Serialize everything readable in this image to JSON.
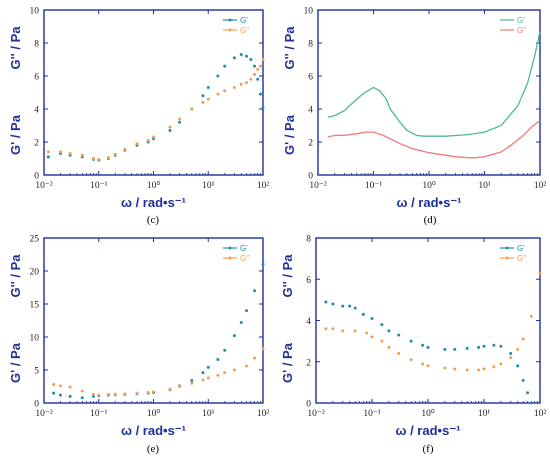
{
  "chart_data": [
    {
      "panel": "(c)",
      "type": "scatter",
      "xlabel": "ω / rad•s⁻¹",
      "ylabel_g1": "G' / Pa",
      "ylabel_g2": "G'' / Pa",
      "xscale": "log",
      "xlim": [
        0.01,
        100
      ],
      "ylim": [
        0,
        10
      ],
      "yticks": [
        0,
        2,
        4,
        6,
        8,
        10
      ],
      "xticks": [
        "10⁻²",
        "10⁻¹",
        "10⁰",
        "10¹",
        "10²"
      ],
      "legend_position": "top-right",
      "series": [
        {
          "name": "G'",
          "color": "#1f8fa3",
          "style": "dots",
          "x": [
            0.012,
            0.02,
            0.03,
            0.05,
            0.08,
            0.1,
            0.15,
            0.2,
            0.3,
            0.5,
            0.8,
            1,
            2,
            3,
            5,
            8,
            10,
            15,
            20,
            30,
            40,
            50,
            60,
            70,
            80,
            90,
            100
          ],
          "y": [
            1.1,
            1.3,
            1.2,
            1.1,
            0.95,
            0.9,
            1.0,
            1.2,
            1.5,
            1.8,
            2.0,
            2.2,
            2.7,
            3.2,
            4.0,
            4.8,
            5.3,
            6.0,
            6.6,
            7.1,
            7.3,
            7.2,
            7.0,
            6.6,
            5.8,
            4.9,
            4.1
          ]
        },
        {
          "name": "G''",
          "color": "#f0a050",
          "style": "dots",
          "x": [
            0.012,
            0.02,
            0.03,
            0.05,
            0.08,
            0.1,
            0.15,
            0.2,
            0.3,
            0.5,
            0.8,
            1,
            2,
            3,
            5,
            8,
            10,
            15,
            20,
            30,
            40,
            50,
            60,
            70,
            80,
            90,
            100
          ],
          "y": [
            1.4,
            1.4,
            1.3,
            1.2,
            1.0,
            0.95,
            1.05,
            1.25,
            1.55,
            1.9,
            2.1,
            2.3,
            2.9,
            3.4,
            4.0,
            4.4,
            4.6,
            4.9,
            5.1,
            5.3,
            5.5,
            5.6,
            5.8,
            6.1,
            6.4,
            6.6,
            7.0
          ]
        }
      ]
    },
    {
      "panel": "(d)",
      "type": "line",
      "xlabel": "ω / rad•s⁻¹",
      "ylabel_g1": "G' / Pa",
      "ylabel_g2": "G'' / Pa",
      "xscale": "log",
      "xlim": [
        0.01,
        100
      ],
      "ylim": [
        0,
        10
      ],
      "yticks": [
        0,
        2,
        4,
        6,
        8,
        10
      ],
      "xticks": [
        "10⁻²",
        "10⁻¹",
        "10⁰",
        "10¹",
        "10²"
      ],
      "legend_position": "top-right",
      "series": [
        {
          "name": "G'",
          "color": "#4cb89a",
          "style": "line",
          "x": [
            0.015,
            0.02,
            0.03,
            0.04,
            0.05,
            0.07,
            0.1,
            0.13,
            0.17,
            0.2,
            0.3,
            0.4,
            0.6,
            0.8,
            1,
            2,
            5,
            10,
            20,
            40,
            60,
            80,
            100
          ],
          "y": [
            3.5,
            3.6,
            3.9,
            4.3,
            4.6,
            5.0,
            5.3,
            5.1,
            4.6,
            4.0,
            3.2,
            2.7,
            2.4,
            2.35,
            2.35,
            2.35,
            2.45,
            2.6,
            3.0,
            4.2,
            5.6,
            7.2,
            8.7
          ]
        },
        {
          "name": "G''",
          "color": "#f07a7a",
          "style": "line",
          "x": [
            0.015,
            0.02,
            0.03,
            0.05,
            0.07,
            0.1,
            0.15,
            0.2,
            0.3,
            0.5,
            1,
            2,
            3,
            5,
            7,
            10,
            20,
            30,
            50,
            70,
            100
          ],
          "y": [
            2.3,
            2.4,
            2.4,
            2.5,
            2.6,
            2.6,
            2.4,
            2.2,
            1.9,
            1.6,
            1.35,
            1.2,
            1.1,
            1.05,
            1.05,
            1.1,
            1.4,
            1.8,
            2.4,
            2.9,
            3.3
          ]
        }
      ]
    },
    {
      "panel": "(e)",
      "type": "scatter",
      "xlabel": "ω / rad•s⁻¹",
      "ylabel_g1": "G' / Pa",
      "ylabel_g2": "G'' / Pa",
      "xscale": "log",
      "xlim": [
        0.01,
        100
      ],
      "ylim": [
        0,
        25
      ],
      "yticks": [
        0,
        5,
        10,
        15,
        20,
        25
      ],
      "xticks": [
        "10⁻²",
        "10⁻¹",
        "10⁰",
        "10¹",
        "10²"
      ],
      "legend_position": "top-right",
      "series": [
        {
          "name": "G'",
          "color": "#1f8fa3",
          "style": "dots",
          "x": [
            0.015,
            0.02,
            0.03,
            0.05,
            0.08,
            0.1,
            0.15,
            0.2,
            0.3,
            0.5,
            0.8,
            1,
            2,
            3,
            5,
            8,
            10,
            15,
            20,
            30,
            40,
            50,
            70,
            100
          ],
          "y": [
            1.5,
            1.2,
            1.0,
            0.8,
            1.0,
            1.1,
            1.2,
            1.25,
            1.3,
            1.4,
            1.5,
            1.6,
            2.0,
            2.6,
            3.4,
            4.6,
            5.4,
            6.6,
            8.0,
            10.2,
            12.2,
            14.0,
            17.0,
            21.0
          ]
        },
        {
          "name": "G''",
          "color": "#f0a050",
          "style": "dots",
          "x": [
            0.015,
            0.02,
            0.03,
            0.05,
            0.08,
            0.1,
            0.15,
            0.2,
            0.3,
            0.5,
            0.8,
            1,
            2,
            3,
            5,
            8,
            10,
            15,
            20,
            30,
            50,
            70,
            100
          ],
          "y": [
            2.8,
            2.6,
            2.4,
            1.8,
            1.3,
            1.2,
            1.3,
            1.35,
            1.4,
            1.5,
            1.6,
            1.7,
            2.1,
            2.5,
            3.0,
            3.5,
            3.8,
            4.2,
            4.6,
            5.0,
            5.6,
            6.8,
            8.2
          ]
        }
      ]
    },
    {
      "panel": "(f)",
      "type": "scatter",
      "xlabel": "ω / rad•s⁻¹",
      "ylabel_g1": "G' / Pa",
      "ylabel_g2": "G'' / Pa",
      "xscale": "log",
      "xlim": [
        0.01,
        100
      ],
      "ylim": [
        0,
        8
      ],
      "yticks": [
        0,
        2,
        4,
        6,
        8
      ],
      "xticks": [
        "10⁻²",
        "10⁻¹",
        "10⁰",
        "10¹",
        "10²"
      ],
      "legend_position": "top-right",
      "series": [
        {
          "name": "G'",
          "color": "#1f8fa3",
          "style": "dots",
          "x": [
            0.015,
            0.02,
            0.03,
            0.04,
            0.05,
            0.07,
            0.1,
            0.15,
            0.2,
            0.3,
            0.5,
            0.8,
            1,
            2,
            3,
            5,
            8,
            10,
            15,
            20,
            30,
            40,
            50,
            60,
            70
          ],
          "y": [
            4.9,
            4.8,
            4.7,
            4.7,
            4.6,
            4.3,
            4.1,
            3.8,
            3.5,
            3.3,
            3.0,
            2.8,
            2.7,
            2.6,
            2.6,
            2.65,
            2.7,
            2.75,
            2.8,
            2.75,
            2.4,
            1.8,
            1.1,
            0.5,
            0.0
          ]
        },
        {
          "name": "G''",
          "color": "#f0a050",
          "style": "dots",
          "x": [
            0.015,
            0.02,
            0.03,
            0.05,
            0.08,
            0.1,
            0.15,
            0.2,
            0.3,
            0.5,
            0.8,
            1,
            2,
            3,
            5,
            8,
            10,
            15,
            20,
            30,
            40,
            50,
            70,
            100
          ],
          "y": [
            3.6,
            3.6,
            3.5,
            3.5,
            3.4,
            3.2,
            3.0,
            2.7,
            2.4,
            2.1,
            1.9,
            1.8,
            1.7,
            1.65,
            1.6,
            1.6,
            1.65,
            1.75,
            1.9,
            2.2,
            2.6,
            3.1,
            4.2,
            6.3
          ]
        }
      ]
    }
  ]
}
